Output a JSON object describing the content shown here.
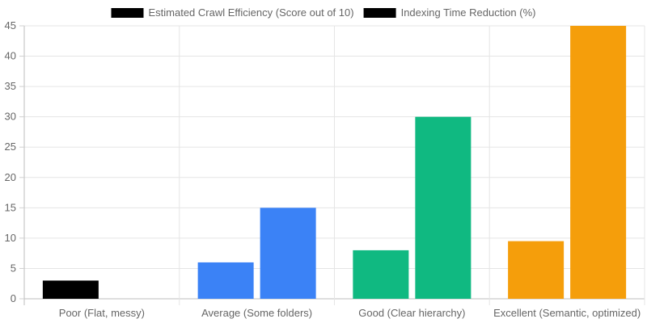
{
  "chart_data": {
    "type": "bar",
    "categories": [
      "Poor (Flat, messy)",
      "Average (Some folders)",
      "Good (Clear hierarchy)",
      "Excellent (Semantic, optimized)"
    ],
    "series": [
      {
        "name": "Estimated Crawl Efficiency (Score out of 10)",
        "values": [
          3,
          6,
          8,
          9.5
        ]
      },
      {
        "name": "Indexing Time Reduction (%)",
        "values": [
          0,
          15,
          30,
          45
        ]
      }
    ],
    "bar_colors": [
      "#000000",
      "#3b82f6",
      "#10b981",
      "#f59e0b"
    ],
    "legend_swatch_color": "#000000",
    "legend_position": "top-center",
    "ylim": [
      0,
      45
    ],
    "yticks": [
      0,
      5,
      10,
      15,
      20,
      25,
      30,
      35,
      40,
      45
    ],
    "grid": true,
    "title": "",
    "xlabel": "",
    "ylabel": ""
  }
}
